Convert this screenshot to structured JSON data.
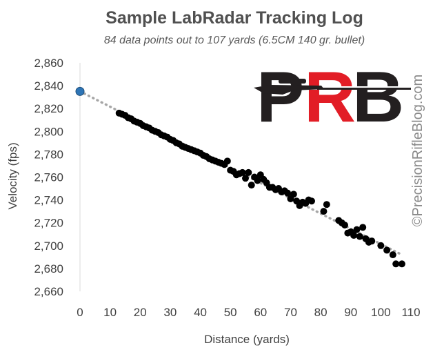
{
  "chart_data": {
    "type": "scatter",
    "title": "Sample LabRadar Tracking Log",
    "subtitle": "84 data points out to 107 yards (6.5CM 140 gr. bullet)",
    "xlabel": "Distance (yards)",
    "ylabel": "Velocity (fps)",
    "xlim": [
      0,
      110
    ],
    "ylim": [
      2660,
      2860
    ],
    "xticks": [
      0,
      10,
      20,
      30,
      40,
      50,
      60,
      70,
      80,
      90,
      100,
      110
    ],
    "yticks": [
      2660,
      2680,
      2700,
      2720,
      2740,
      2760,
      2780,
      2800,
      2820,
      2840,
      2860
    ],
    "xtick_labels": [
      "0",
      "10",
      "20",
      "30",
      "40",
      "50",
      "60",
      "70",
      "80",
      "90",
      "100",
      "110"
    ],
    "ytick_labels": [
      "2,660",
      "2,680",
      "2,700",
      "2,720",
      "2,740",
      "2,760",
      "2,780",
      "2,800",
      "2,820",
      "2,840",
      "2,860"
    ],
    "grid": false,
    "legend": "none",
    "muzzle_point": {
      "x": 0,
      "y": 2835
    },
    "trendline": {
      "style": "dotted",
      "from": [
        0,
        2835
      ],
      "to": [
        107,
        2692
      ]
    },
    "series": [
      {
        "points": [
          [
            13,
            2816
          ],
          [
            14,
            2815
          ],
          [
            15,
            2814
          ],
          [
            16,
            2812
          ],
          [
            17,
            2811
          ],
          [
            18,
            2809
          ],
          [
            19,
            2808
          ],
          [
            20,
            2807
          ],
          [
            21,
            2805
          ],
          [
            22,
            2804
          ],
          [
            23,
            2803
          ],
          [
            24,
            2801
          ],
          [
            25,
            2800
          ],
          [
            26,
            2799
          ],
          [
            27,
            2797
          ],
          [
            28,
            2796
          ],
          [
            29,
            2795
          ],
          [
            30,
            2793
          ],
          [
            31,
            2792
          ],
          [
            32,
            2790
          ],
          [
            33,
            2789
          ],
          [
            34,
            2787
          ],
          [
            35,
            2786
          ],
          [
            36,
            2785
          ],
          [
            37,
            2784
          ],
          [
            38,
            2783
          ],
          [
            39,
            2782
          ],
          [
            40,
            2781
          ],
          [
            41,
            2779
          ],
          [
            42,
            2778
          ],
          [
            43,
            2776
          ],
          [
            44,
            2775
          ],
          [
            45,
            2774
          ],
          [
            46,
            2773
          ],
          [
            47,
            2772
          ],
          [
            48,
            2771
          ],
          [
            49,
            2774
          ],
          [
            50,
            2766
          ],
          [
            51,
            2765
          ],
          [
            52,
            2762
          ],
          [
            53,
            2763
          ],
          [
            54,
            2764
          ],
          [
            55,
            2759
          ],
          [
            56,
            2764
          ],
          [
            57,
            2753
          ],
          [
            58,
            2760
          ],
          [
            59,
            2757
          ],
          [
            60,
            2762
          ],
          [
            61,
            2758
          ],
          [
            62,
            2755
          ],
          [
            63,
            2751
          ],
          [
            64,
            2751
          ],
          [
            65,
            2749
          ],
          [
            66,
            2750
          ],
          [
            67,
            2747
          ],
          [
            68,
            2748
          ],
          [
            69,
            2746
          ],
          [
            70,
            2741
          ],
          [
            71,
            2745
          ],
          [
            72,
            2739
          ],
          [
            73,
            2735
          ],
          [
            74,
            2738
          ],
          [
            75,
            2737
          ],
          [
            76,
            2740
          ],
          [
            77,
            2739
          ],
          [
            81,
            2730
          ],
          [
            82,
            2736
          ],
          [
            86,
            2722
          ],
          [
            87,
            2720
          ],
          [
            88,
            2718
          ],
          [
            89,
            2711
          ],
          [
            90,
            2712
          ],
          [
            91,
            2709
          ],
          [
            92,
            2714
          ],
          [
            93,
            2708
          ],
          [
            94,
            2716
          ],
          [
            95,
            2706
          ],
          [
            96,
            2703
          ],
          [
            97,
            2704
          ],
          [
            100,
            2700
          ],
          [
            102,
            2696
          ],
          [
            104,
            2692
          ],
          [
            105,
            2684
          ],
          [
            107,
            2684
          ]
        ]
      }
    ],
    "colors": {
      "points": "#000000",
      "muzzle": "#2e75b6",
      "trendline": "#a6a6a6",
      "axis": "#d9d9d9",
      "logo_dark": "#231f20",
      "logo_red": "#e21d26"
    }
  },
  "logo": {
    "letters": [
      "P",
      "R",
      "B"
    ],
    "alt": "PRB"
  },
  "watermark": "©PrecisionRifleBlog.com"
}
